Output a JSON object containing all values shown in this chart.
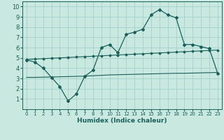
{
  "xlabel": "Humidex (Indice chaleur)",
  "xlim": [
    -0.5,
    23.5
  ],
  "ylim": [
    0,
    10.5
  ],
  "xticks": [
    0,
    1,
    2,
    3,
    4,
    5,
    6,
    7,
    8,
    9,
    10,
    11,
    12,
    13,
    14,
    15,
    16,
    17,
    18,
    19,
    20,
    21,
    22,
    23
  ],
  "yticks": [
    1,
    2,
    3,
    4,
    5,
    6,
    7,
    8,
    9,
    10
  ],
  "bg_color": "#c8e8e0",
  "line_color": "#1a5f5a",
  "grid_color": "#a0ccc8",
  "line1_x": [
    0,
    1,
    2,
    3,
    4,
    5,
    6,
    7,
    8,
    9,
    10,
    11,
    12,
    13,
    14,
    15,
    16,
    17,
    18,
    19,
    20,
    21,
    22,
    23
  ],
  "line1_y": [
    4.8,
    4.6,
    4.0,
    3.1,
    2.2,
    0.8,
    1.5,
    3.2,
    3.8,
    6.0,
    6.3,
    5.5,
    7.3,
    7.5,
    7.8,
    9.2,
    9.7,
    9.2,
    8.9,
    6.3,
    6.3,
    6.1,
    5.9,
    3.5
  ],
  "line2_x": [
    0,
    1,
    2,
    3,
    4,
    5,
    6,
    7,
    8,
    9,
    10,
    11,
    12,
    13,
    14,
    15,
    16,
    17,
    18,
    19,
    20,
    21,
    22,
    23
  ],
  "line2_y": [
    4.85,
    4.88,
    4.92,
    4.96,
    5.0,
    5.04,
    5.08,
    5.12,
    5.16,
    5.2,
    5.24,
    5.28,
    5.32,
    5.36,
    5.4,
    5.44,
    5.48,
    5.52,
    5.56,
    5.6,
    5.64,
    5.68,
    5.72,
    5.76
  ],
  "line3_x": [
    0,
    1,
    2,
    3,
    4,
    5,
    6,
    7,
    8,
    9,
    10,
    11,
    12,
    13,
    14,
    15,
    16,
    17,
    18,
    19,
    20,
    21,
    22,
    23
  ],
  "line3_y": [
    3.1,
    3.1,
    3.12,
    3.14,
    3.16,
    3.18,
    3.2,
    3.22,
    3.26,
    3.3,
    3.34,
    3.36,
    3.38,
    3.4,
    3.42,
    3.44,
    3.46,
    3.48,
    3.5,
    3.5,
    3.52,
    3.54,
    3.56,
    3.58
  ]
}
